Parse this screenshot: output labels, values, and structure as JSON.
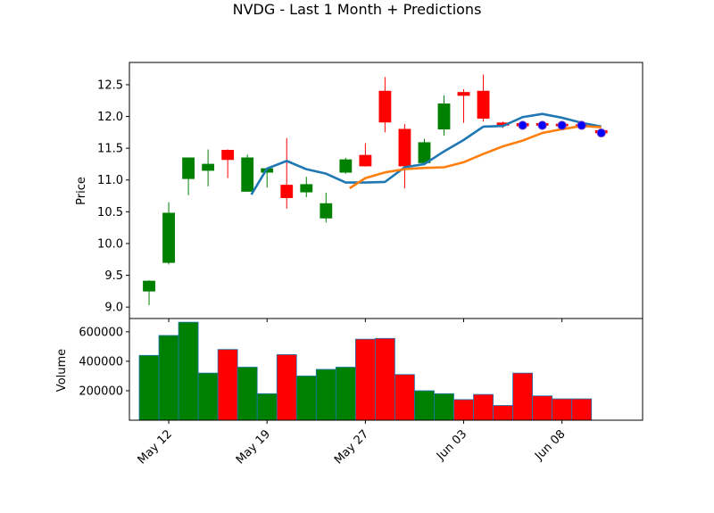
{
  "chart_data": {
    "type": "candlestick",
    "title": "NVDG - Last 1 Month + Predictions",
    "price_panel": {
      "ylabel": "Price",
      "ylim": [
        8.82,
        12.85
      ],
      "yticks": [
        9.0,
        9.5,
        10.0,
        10.5,
        11.0,
        11.5,
        12.0,
        12.5
      ],
      "ytick_labels": [
        "9.0",
        "9.5",
        "10.0",
        "10.5",
        "11.0",
        "11.5",
        "12.0",
        "12.5"
      ]
    },
    "volume_panel": {
      "ylabel": "Volume",
      "ylim": [
        0,
        690000
      ],
      "yticks": [
        200000,
        400000,
        600000
      ],
      "ytick_labels": [
        "200000",
        "400000",
        "600000"
      ]
    },
    "xlim": [
      0,
      26.1
    ],
    "xticks": [
      {
        "pos": 2,
        "label": "May 12"
      },
      {
        "pos": 7,
        "label": "May 19"
      },
      {
        "pos": 12,
        "label": "May 27"
      },
      {
        "pos": 17,
        "label": "Jun 03"
      },
      {
        "pos": 22,
        "label": "Jun 08"
      }
    ],
    "candles": [
      {
        "o": 9.25,
        "h": 9.42,
        "l": 9.03,
        "c": 9.41,
        "v": 0
      },
      {
        "o": 9.7,
        "h": 10.65,
        "l": 9.67,
        "c": 10.48,
        "v": 440000
      },
      {
        "o": 11.02,
        "h": 11.34,
        "l": 10.76,
        "c": 11.35,
        "v": 575000
      },
      {
        "o": 11.15,
        "h": 11.48,
        "l": 10.9,
        "c": 11.25,
        "v": 665000
      },
      {
        "o": 11.47,
        "h": 11.48,
        "l": 11.03,
        "c": 11.32,
        "v": 320000
      },
      {
        "o": 10.82,
        "h": 11.4,
        "l": 10.82,
        "c": 11.35,
        "v": 480000
      },
      {
        "o": 11.12,
        "h": 11.17,
        "l": 10.88,
        "c": 11.18,
        "v": 360000
      },
      {
        "o": 10.92,
        "h": 11.66,
        "l": 10.55,
        "c": 10.72,
        "v": 180000
      },
      {
        "o": 10.81,
        "h": 11.05,
        "l": 10.73,
        "c": 10.93,
        "v": 445000
      },
      {
        "o": 10.4,
        "h": 10.8,
        "l": 10.33,
        "c": 10.63,
        "v": 300000
      },
      {
        "o": 11.12,
        "h": 11.35,
        "l": 11.1,
        "c": 11.32,
        "v": 345000
      },
      {
        "o": 11.39,
        "h": 11.58,
        "l": 11.21,
        "c": 11.22,
        "v": 360000
      },
      {
        "o": 12.4,
        "h": 12.62,
        "l": 11.75,
        "c": 11.91,
        "v": 550000
      },
      {
        "o": 11.8,
        "h": 11.88,
        "l": 10.87,
        "c": 11.22,
        "v": 555000
      },
      {
        "o": 11.27,
        "h": 11.65,
        "l": 11.24,
        "c": 11.59,
        "v": 310000
      },
      {
        "o": 11.8,
        "h": 12.33,
        "l": 11.7,
        "c": 12.2,
        "v": 200000
      },
      {
        "o": 12.38,
        "h": 12.43,
        "l": 11.9,
        "c": 12.33,
        "v": 180000
      },
      {
        "o": 12.4,
        "h": 12.66,
        "l": 11.92,
        "c": 11.97,
        "v": 140000
      },
      {
        "o": 11.9,
        "h": 11.92,
        "l": 11.82,
        "c": 11.86,
        "v": 175000
      },
      {
        "o": 11.89,
        "h": 11.91,
        "l": 11.84,
        "c": 11.85,
        "v": 100000
      },
      {
        "o": 11.89,
        "h": 11.91,
        "l": 11.82,
        "c": 11.86,
        "v": 320000
      },
      {
        "o": 11.88,
        "h": 11.9,
        "l": 11.83,
        "c": 11.85,
        "v": 165000
      },
      {
        "o": 11.87,
        "h": 11.89,
        "l": 11.83,
        "c": 11.85,
        "v": 145000
      },
      {
        "o": 11.78,
        "h": 11.8,
        "l": 11.72,
        "c": 11.74,
        "v": 145000
      }
    ],
    "volume_bars": [
      {
        "x": 1,
        "v": 440000,
        "color": "#008000"
      },
      {
        "x": 2,
        "v": 575000,
        "color": "#008000"
      },
      {
        "x": 3,
        "v": 665000,
        "color": "#008000"
      },
      {
        "x": 4,
        "v": 320000,
        "color": "#008000"
      },
      {
        "x": 5,
        "v": 480000,
        "color": "#ff0000"
      },
      {
        "x": 6,
        "v": 360000,
        "color": "#008000"
      },
      {
        "x": 7,
        "v": 180000,
        "color": "#008000"
      },
      {
        "x": 8,
        "v": 445000,
        "color": "#ff0000"
      },
      {
        "x": 9,
        "v": 300000,
        "color": "#008000"
      },
      {
        "x": 10,
        "v": 345000,
        "color": "#008000"
      },
      {
        "x": 11,
        "v": 360000,
        "color": "#008000"
      },
      {
        "x": 12,
        "v": 550000,
        "color": "#ff0000"
      },
      {
        "x": 13,
        "v": 555000,
        "color": "#ff0000"
      },
      {
        "x": 14,
        "v": 310000,
        "color": "#ff0000"
      },
      {
        "x": 15,
        "v": 200000,
        "color": "#008000"
      },
      {
        "x": 16,
        "v": 180000,
        "color": "#008000"
      },
      {
        "x": 17,
        "v": 140000,
        "color": "#ff0000"
      },
      {
        "x": 18,
        "v": 175000,
        "color": "#ff0000"
      },
      {
        "x": 19,
        "v": 100000,
        "color": "#ff0000"
      },
      {
        "x": 20,
        "v": 320000,
        "color": "#ff0000"
      },
      {
        "x": 21,
        "v": 165000,
        "color": "#ff0000"
      },
      {
        "x": 22,
        "v": 145000,
        "color": "#ff0000"
      },
      {
        "x": 23,
        "v": 145000,
        "color": "#ff0000"
      }
    ],
    "moving_averages": [
      {
        "color": "#1f77b4",
        "points": [
          [
            6.2,
            10.77
          ],
          [
            7,
            11.18
          ],
          [
            8,
            11.3
          ],
          [
            9,
            11.17
          ],
          [
            10,
            11.1
          ],
          [
            11,
            10.96
          ],
          [
            12,
            10.96
          ],
          [
            13,
            10.97
          ],
          [
            14,
            11.2
          ],
          [
            15,
            11.25
          ],
          [
            16,
            11.45
          ],
          [
            17,
            11.63
          ],
          [
            18,
            11.84
          ],
          [
            19,
            11.85
          ],
          [
            20,
            11.99
          ],
          [
            21,
            12.04
          ],
          [
            22,
            11.98
          ],
          [
            23,
            11.9
          ],
          [
            24,
            11.84
          ]
        ]
      },
      {
        "color": "#ff7f0e",
        "points": [
          [
            11.2,
            10.87
          ],
          [
            12,
            11.03
          ],
          [
            13,
            11.12
          ],
          [
            14,
            11.17
          ],
          [
            15,
            11.19
          ],
          [
            16,
            11.2
          ],
          [
            17,
            11.28
          ],
          [
            18,
            11.41
          ],
          [
            19,
            11.53
          ],
          [
            20,
            11.62
          ],
          [
            21,
            11.74
          ],
          [
            22,
            11.8
          ],
          [
            23,
            11.85
          ],
          [
            24,
            11.83
          ]
        ]
      }
    ],
    "prediction_points": {
      "color": "#0000ff",
      "points": [
        [
          20,
          11.86
        ],
        [
          21,
          11.86
        ],
        [
          22,
          11.86
        ],
        [
          23,
          11.86
        ],
        [
          24,
          11.74
        ]
      ]
    },
    "colors": {
      "up": "#008000",
      "down": "#ff0000",
      "volume_edge": "#1f77b4"
    }
  }
}
